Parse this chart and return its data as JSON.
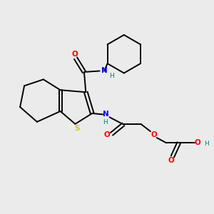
{
  "background_color": "#ebebeb",
  "atom_colors": {
    "C": "#000000",
    "N": "#0000ee",
    "O": "#ff0000",
    "S": "#cccc00",
    "H": "#008080"
  },
  "figsize": [
    3.0,
    3.0
  ],
  "dpi": 100
}
